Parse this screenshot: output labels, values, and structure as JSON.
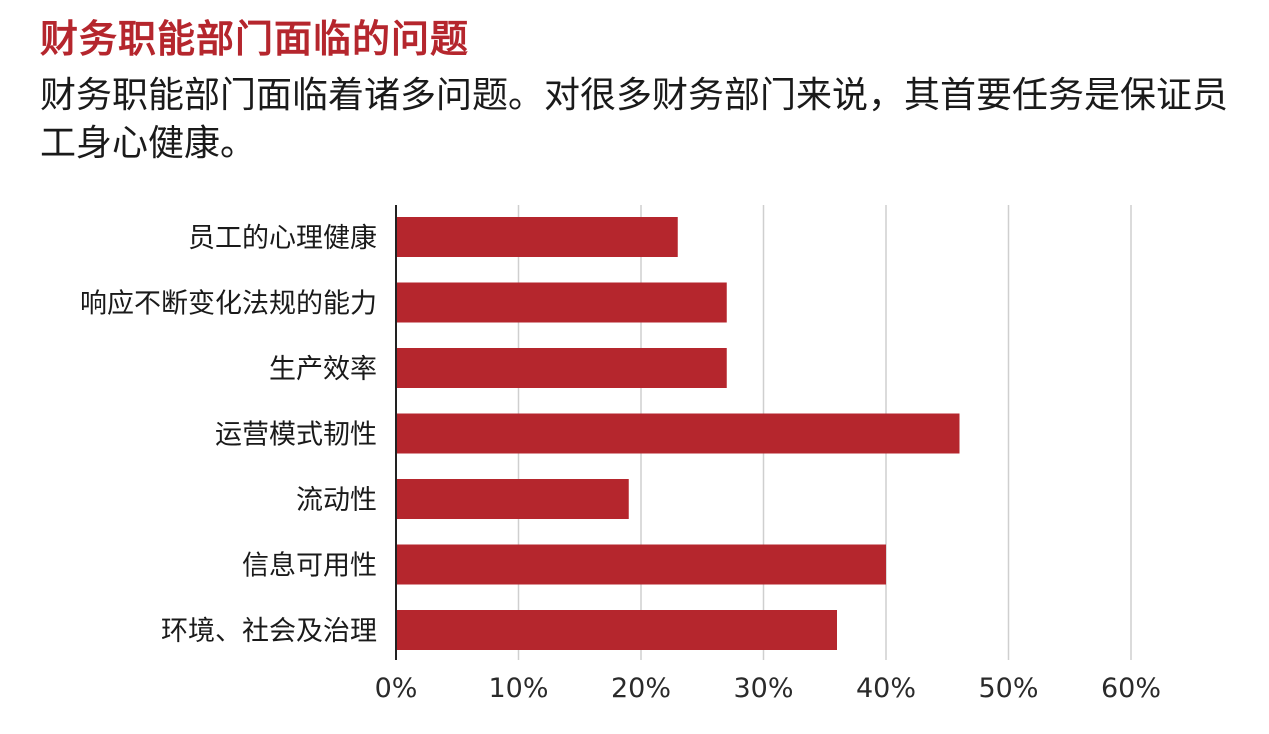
{
  "header": {
    "title": "财务职能部门面临的问题",
    "subtitle": "财务职能部门面临着诸多问题。对很多财务部门来说，其首要任务是保证员工身心健康。"
  },
  "colors": {
    "title": "#b5262d",
    "bar": "#b5262d",
    "grid": "#cfcfcf",
    "axis": "#222222"
  },
  "chart_data": {
    "type": "bar",
    "orientation": "horizontal",
    "categories": [
      "员工的心理健康",
      "响应不断变化法规的能力",
      "生产效率",
      "运营模式韧性",
      "流动性",
      "信息可用性",
      "环境、社会及治理"
    ],
    "values": [
      23,
      27,
      27,
      46,
      19,
      40,
      36
    ],
    "unit": "%",
    "xlim": [
      0,
      60
    ],
    "xticks": [
      "0%",
      "10%",
      "20%",
      "30%",
      "40%",
      "50%",
      "60%"
    ],
    "grid": true,
    "legend": "none"
  }
}
